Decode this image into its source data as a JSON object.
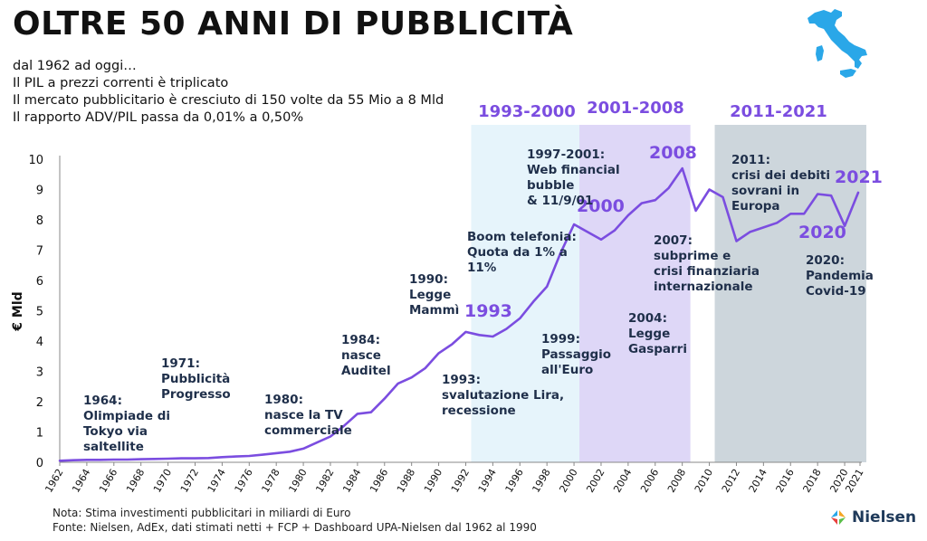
{
  "header": {
    "title": "OLTRE 50 ANNI DI PUBBLICITÀ",
    "subtitle_lines": [
      "dal 1962 ad oggi…",
      "Il PIL a prezzi correnti è triplicato",
      "Il mercato pubblicitario è cresciuto di 150 volte da 55 Mio a 8 Mld",
      "Il rapporto ADV/PIL passa da 0,01% a 0,50%"
    ]
  },
  "footer": {
    "note": "Nota: Stima investimenti pubblicitari in miliardi di Euro",
    "source": "Fonte: Nielsen, AdEx, dati stimati netti  +  FCP  + Dashboard UPA-Nielsen dal 1962 al 1990",
    "brand": "Nielsen"
  },
  "map": {
    "icon": "italy-map-icon",
    "color": "#2aa7e8"
  },
  "colors": {
    "line": "#7b4de0",
    "period_labels": "#7b4de0",
    "annotations": "#1f2f4a"
  },
  "chart_data": {
    "type": "line",
    "ylabel": "€ Mld",
    "ylim": [
      0,
      10
    ],
    "yticks": [
      0,
      1,
      2,
      3,
      4,
      5,
      6,
      7,
      8,
      9,
      10
    ],
    "xlim": [
      1962,
      2021
    ],
    "xticks": [
      "1962",
      "1964",
      "1966",
      "1968",
      "1970",
      "1972",
      "1974",
      "1976",
      "1978",
      "1980",
      "1982",
      "1984",
      "1986",
      "1988",
      "1990",
      "1992",
      "1994",
      "1996",
      "1998",
      "2000",
      "2002",
      "2004",
      "2006",
      "2008",
      "2010",
      "2012",
      "2014",
      "2016",
      "2018",
      "2020",
      "2021"
    ],
    "series": [
      {
        "x": [
          1962,
          1963,
          1964,
          1965,
          1966,
          1967,
          1968,
          1969,
          1970,
          1971,
          1972,
          1973,
          1974,
          1975,
          1976,
          1977,
          1978,
          1979,
          1980,
          1981,
          1982,
          1983,
          1984,
          1985,
          1986,
          1987,
          1988,
          1989,
          1990,
          1991,
          1992,
          1993,
          1994,
          1995,
          1996,
          1997,
          1998,
          1999,
          2000,
          2001,
          2002,
          2003,
          2004,
          2005,
          2006,
          2007,
          2008,
          2009,
          2010,
          2011,
          2012,
          2013,
          2014,
          2015,
          2016,
          2017,
          2018,
          2019,
          2020,
          2021
        ],
        "y": [
          0.05,
          0.07,
          0.08,
          0.08,
          0.09,
          0.09,
          0.1,
          0.11,
          0.12,
          0.13,
          0.13,
          0.14,
          0.17,
          0.19,
          0.21,
          0.25,
          0.3,
          0.35,
          0.45,
          0.65,
          0.85,
          1.2,
          1.6,
          1.65,
          2.1,
          2.6,
          2.8,
          3.1,
          3.6,
          3.9,
          4.3,
          4.2,
          4.15,
          4.4,
          4.75,
          5.3,
          5.8,
          6.9,
          7.85,
          7.6,
          7.35,
          7.65,
          8.15,
          8.55,
          8.65,
          9.05,
          9.7,
          8.3,
          9.0,
          8.75,
          7.3,
          7.6,
          7.75,
          7.9,
          8.2,
          8.2,
          8.85,
          8.8,
          7.8,
          8.9
        ]
      }
    ],
    "periods": [
      {
        "label": "1993-2000",
        "start": 1993,
        "end": 2000,
        "color": "#e6f4fb"
      },
      {
        "label": "2001-2008",
        "start": 2001,
        "end": 2008,
        "color": "#ded7f7"
      },
      {
        "label": "2011-2021",
        "start": 2011,
        "end": 2021,
        "color": "#cdd6dc"
      }
    ],
    "year_labels": [
      "1993",
      "2000",
      "2008",
      "2020",
      "2021"
    ],
    "annotations": [
      {
        "lines": [
          "1964:",
          "Olimpiade di",
          "Tokyo via",
          "saltellite"
        ]
      },
      {
        "lines": [
          "1971:",
          "Pubblicità",
          "Progresso"
        ]
      },
      {
        "lines": [
          "1980:",
          "nasce la TV",
          "commerciale"
        ]
      },
      {
        "lines": [
          "1984:",
          "nasce",
          "Auditel"
        ]
      },
      {
        "lines": [
          "1990:",
          "Legge",
          "Mammì"
        ]
      },
      {
        "lines": [
          "Boom telefonia:",
          "Quota da 1% a",
          "11%"
        ]
      },
      {
        "lines": [
          "1993:",
          "svalutazione Lira,",
          "recessione"
        ]
      },
      {
        "lines": [
          "1997-2001:",
          "Web financial",
          "bubble",
          " & 11/9/01"
        ]
      },
      {
        "lines": [
          "1999:",
          "Passaggio",
          "all'Euro"
        ]
      },
      {
        "lines": [
          "2004:",
          "Legge",
          "Gasparri"
        ]
      },
      {
        "lines": [
          "2007:",
          "subprime  e",
          "crisi finanziaria",
          "internazionale"
        ]
      },
      {
        "lines": [
          "2011:",
          "crisi dei debiti",
          "sovrani in",
          "Europa"
        ]
      },
      {
        "lines": [
          "2020:",
          "Pandemia",
          "Covid-19"
        ]
      }
    ]
  }
}
